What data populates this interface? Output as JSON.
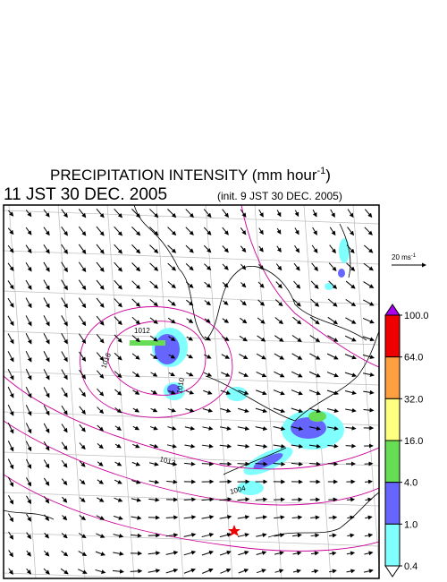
{
  "header": {
    "title": {
      "text": "PRECIPITATION INTENSITY (mm hour",
      "superscript": "-1",
      "closing": ")"
    },
    "valid_time": "11 JST 30 DEC. 2005",
    "init_time": "(init. 9 JST 30 DEC. 2005)"
  },
  "wind_scale": {
    "text": "20 ms",
    "superscript": "-1"
  },
  "color_scale": {
    "levels": [
      {
        "value": 100,
        "label": "100.0"
      },
      {
        "value": 64,
        "label": "64.0"
      },
      {
        "value": 32,
        "label": "32.0"
      },
      {
        "value": 16,
        "label": "16.0"
      },
      {
        "value": 4,
        "label": "4.0"
      },
      {
        "value": 1,
        "label": "1.0"
      },
      {
        "value": 0.4,
        "label": "0.4"
      }
    ],
    "over_color": "#aa00ee",
    "colors": [
      "#ee0000",
      "#ffa040",
      "#ffff80",
      "#66dd55",
      "#6666ff",
      "#80ffff"
    ],
    "under_color": "#ffffff"
  },
  "contour_labels": [
    "1016",
    "1012",
    "1010",
    "1012",
    "1004"
  ]
}
